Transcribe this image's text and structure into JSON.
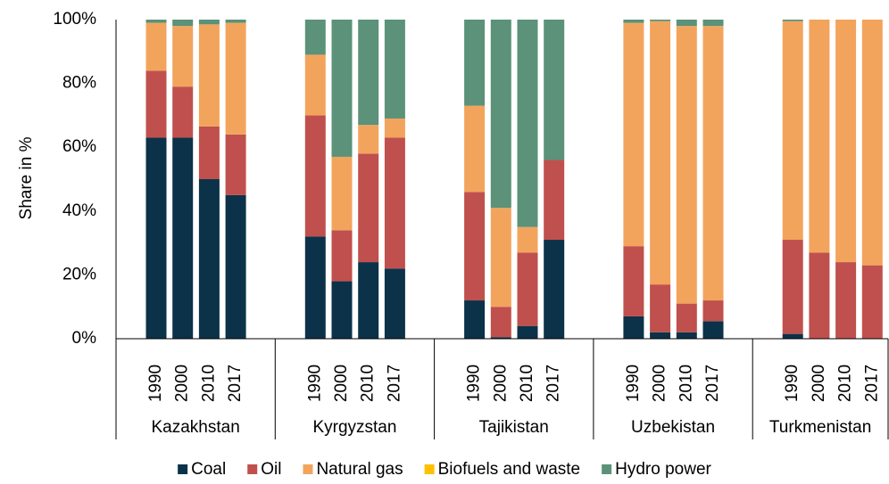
{
  "chart_data": {
    "type": "stacked-bar",
    "y_axis_label": "Share in %",
    "groups": [
      "Kazakhstan",
      "Kyrgyzstan",
      "Tajikistan",
      "Uzbekistan",
      "Turkmenistan"
    ],
    "categories": [
      "1990",
      "2000",
      "2010",
      "2017",
      "1990",
      "2000",
      "2010",
      "2017",
      "1990",
      "2000",
      "2010",
      "2017",
      "1990",
      "2000",
      "2010",
      "2017",
      "1990",
      "2000",
      "2010",
      "2017"
    ],
    "series": [
      {
        "name": "Coal",
        "color": "#0b3249",
        "values": [
          63,
          63,
          50,
          45,
          32,
          18,
          24,
          22,
          12,
          0.5,
          4,
          31,
          7,
          2,
          2,
          5.5,
          1.5,
          0,
          0,
          0
        ]
      },
      {
        "name": "Oil",
        "color": "#c0504d",
        "values": [
          21,
          16,
          16.5,
          19,
          38,
          16,
          34,
          41,
          34,
          9.5,
          23,
          25,
          22,
          15,
          9,
          6.5,
          29.5,
          27,
          24,
          23
        ]
      },
      {
        "name": "Natural gas",
        "color": "#f3a45c",
        "values": [
          15,
          19,
          32,
          35,
          19,
          23,
          9,
          6,
          27,
          31,
          8,
          0,
          70,
          82.5,
          87,
          86,
          68.5,
          73,
          76,
          77
        ]
      },
      {
        "name": "Biofuels and waste",
        "color": "#ffc000",
        "values": [
          0,
          0,
          0,
          0,
          0,
          0,
          0,
          0,
          0,
          0,
          0,
          0,
          0,
          0,
          0,
          0,
          0,
          0,
          0,
          0
        ]
      },
      {
        "name": "Hydro power",
        "color": "#5b9279",
        "values": [
          1,
          2,
          1.5,
          1,
          11,
          43,
          33,
          31,
          27,
          59,
          65,
          44,
          1,
          0.5,
          2,
          2,
          0.5,
          0,
          0,
          0
        ]
      }
    ],
    "ylim": [
      0,
      100
    ],
    "yticks": [
      {
        "value": 0,
        "label": "0%"
      },
      {
        "value": 20,
        "label": "20%"
      },
      {
        "value": 40,
        "label": "40%"
      },
      {
        "value": 60,
        "label": "60%"
      },
      {
        "value": 80,
        "label": "80%"
      },
      {
        "value": 100,
        "label": "100%"
      }
    ],
    "legend": "bottom"
  }
}
